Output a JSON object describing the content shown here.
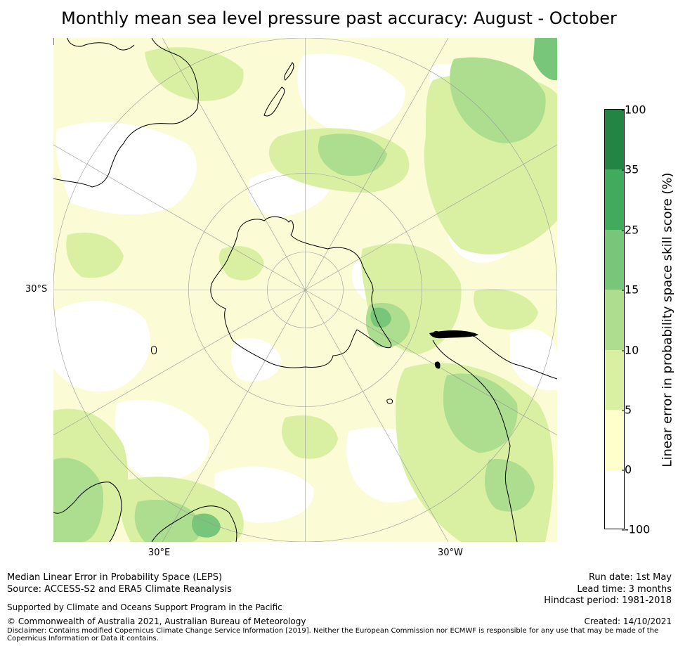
{
  "title": "Monthly mean sea level pressure past accuracy: August - October",
  "map": {
    "projection": "south-polar-stereographic",
    "lat_labels": [
      "30°S"
    ],
    "lon_labels": [
      "30°E",
      "30°W"
    ],
    "landmasses": [
      "Australia",
      "New Zealand",
      "Antarctica",
      "South America",
      "Africa",
      "Madagascar"
    ]
  },
  "colorbar": {
    "label": "Linear error in probability space skill score (%)",
    "ticks": [
      "100",
      "35",
      "25",
      "15",
      "10",
      "5",
      "0",
      "-100"
    ],
    "bins": [
      {
        "from": "35",
        "to": "100",
        "color": "#238443"
      },
      {
        "from": "25",
        "to": "35",
        "color": "#41ab5d"
      },
      {
        "from": "15",
        "to": "25",
        "color": "#78c679"
      },
      {
        "from": "10",
        "to": "15",
        "color": "#addd8e"
      },
      {
        "from": "5",
        "to": "10",
        "color": "#d9f0a3"
      },
      {
        "from": "0",
        "to": "5",
        "color": "#ffffcc"
      },
      {
        "from": "-100",
        "to": "0",
        "color": "#ffffff"
      }
    ]
  },
  "footer": {
    "method": "Median Linear Error in Probability Space (LEPS)",
    "source": "Source: ACCESS-S2 and ERA5 Climate Reanalysis",
    "supported": "Supported by Climate and Oceans Support Program in the Pacific",
    "copyright": "© Commonwealth of Australia 2021, Australian Bureau of Meteorology",
    "disclaimer": "Disclaimer: Contains modified Copernicus Climate Change Service Information [2019]. Neither the European Commission nor ECMWF is responsible for any use that may be made of the Copernicus Information or Data it contains.",
    "run_date": "Run date: 1st May",
    "lead_time": "Lead time: 3 months",
    "hindcast": "Hindcast period: 1981-2018",
    "created": "Created: 14/10/2021"
  }
}
